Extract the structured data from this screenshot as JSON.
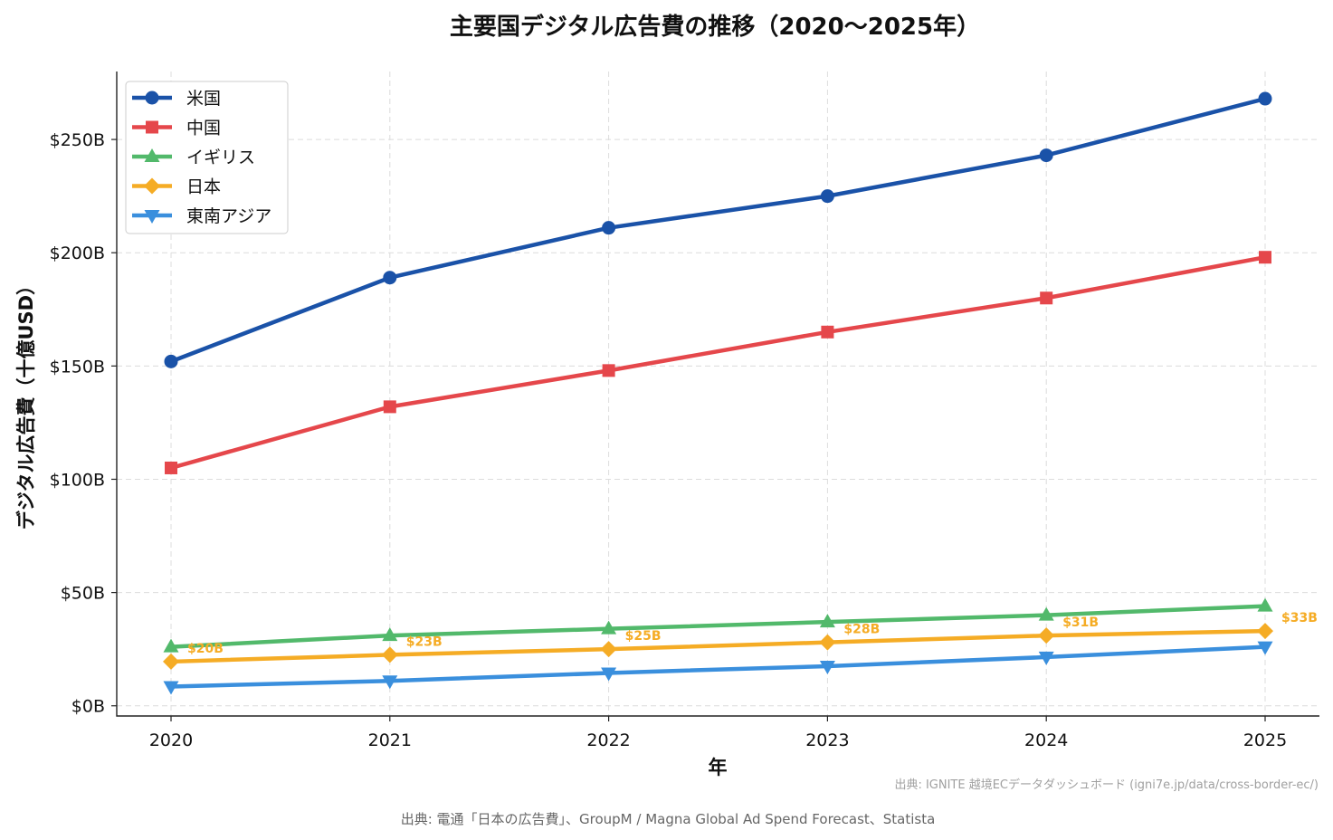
{
  "chart_data": {
    "type": "line",
    "title": "主要国デジタル広告費の推移（2020〜2025年）",
    "xlabel": "年",
    "ylabel": "デジタル広告費（十億USD）",
    "x": [
      "2020",
      "2021",
      "2022",
      "2023",
      "2024",
      "2025"
    ],
    "ylim": [
      -4.5,
      280
    ],
    "yticks": [
      0,
      50,
      100,
      150,
      200,
      250
    ],
    "ytick_labels": [
      "$0B",
      "$50B",
      "$100B",
      "$150B",
      "$200B",
      "$250B"
    ],
    "grid": true,
    "legend_position": "top-left",
    "series": [
      {
        "name": "米国",
        "color": "#1a52a8",
        "marker": "circle",
        "values": [
          152,
          189,
          211,
          225,
          243,
          268
        ]
      },
      {
        "name": "中国",
        "color": "#e5474b",
        "marker": "square",
        "values": [
          105,
          132,
          148,
          165,
          180,
          198
        ]
      },
      {
        "name": "イギリス",
        "color": "#52b96b",
        "marker": "triangle-up",
        "values": [
          26,
          31,
          34,
          37,
          40,
          44
        ]
      },
      {
        "name": "日本",
        "color": "#f5ac25",
        "marker": "diamond",
        "values": [
          19.5,
          22.5,
          25,
          28,
          31,
          33
        ],
        "data_labels": [
          "$20B",
          "$23B",
          "$25B",
          "$28B",
          "$31B",
          "$33B"
        ]
      },
      {
        "name": "東南アジア",
        "color": "#3a8fdd",
        "marker": "triangle-down",
        "values": [
          8.5,
          11,
          14.5,
          17.5,
          21.5,
          26
        ]
      }
    ],
    "source_note": "出典: IGNITE 越境ECデータダッシュボード (igni7e.jp/data/cross-border-ec/)",
    "source": "出典: 電通「日本の広告費」、GroupM / Magna Global Ad Spend Forecast、Statista"
  }
}
